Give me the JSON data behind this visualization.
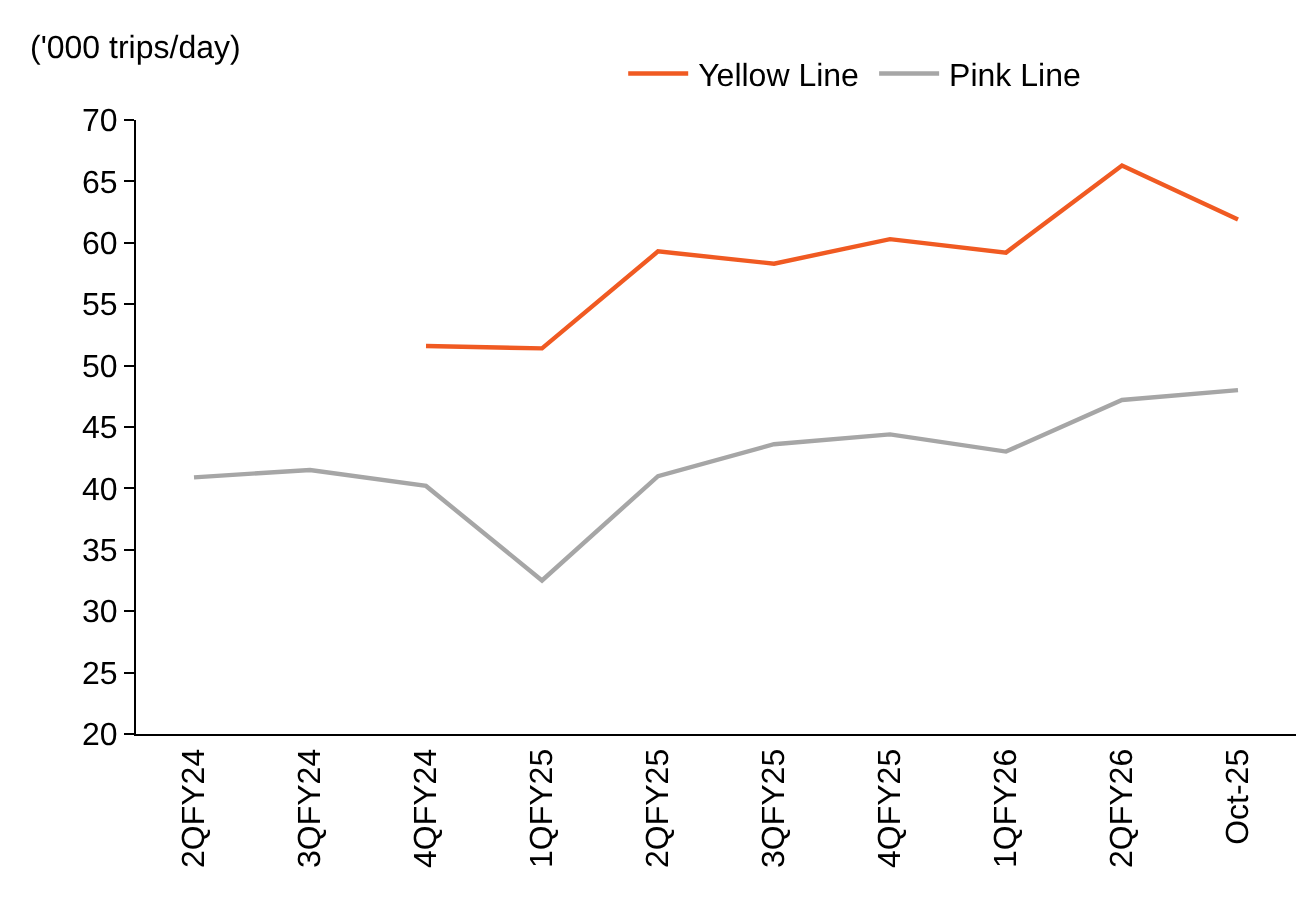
{
  "chart_data": {
    "type": "line",
    "ylabel": "('000 trips/day)",
    "categories": [
      "2QFY24",
      "3QFY24",
      "4QFY24",
      "1QFY25",
      "2QFY25",
      "3QFY25",
      "4QFY25",
      "1QFY26",
      "2QFY26",
      "Oct-25"
    ],
    "series": [
      {
        "name": "Yellow Line",
        "color": "#f05a22",
        "values": [
          null,
          null,
          51.6,
          51.4,
          59.3,
          58.3,
          60.3,
          59.2,
          66.3,
          61.9
        ]
      },
      {
        "name": "Pink Line",
        "color": "#a6a6a6",
        "values": [
          40.9,
          41.5,
          40.2,
          32.5,
          41.0,
          43.6,
          44.4,
          43.0,
          47.2,
          48.0
        ]
      }
    ],
    "ylim": [
      20,
      70
    ],
    "yticks": [
      20,
      25,
      30,
      35,
      40,
      45,
      50,
      55,
      60,
      65,
      70
    ],
    "grid": false,
    "legend": "top",
    "marker": "none",
    "line_style": "solid"
  }
}
